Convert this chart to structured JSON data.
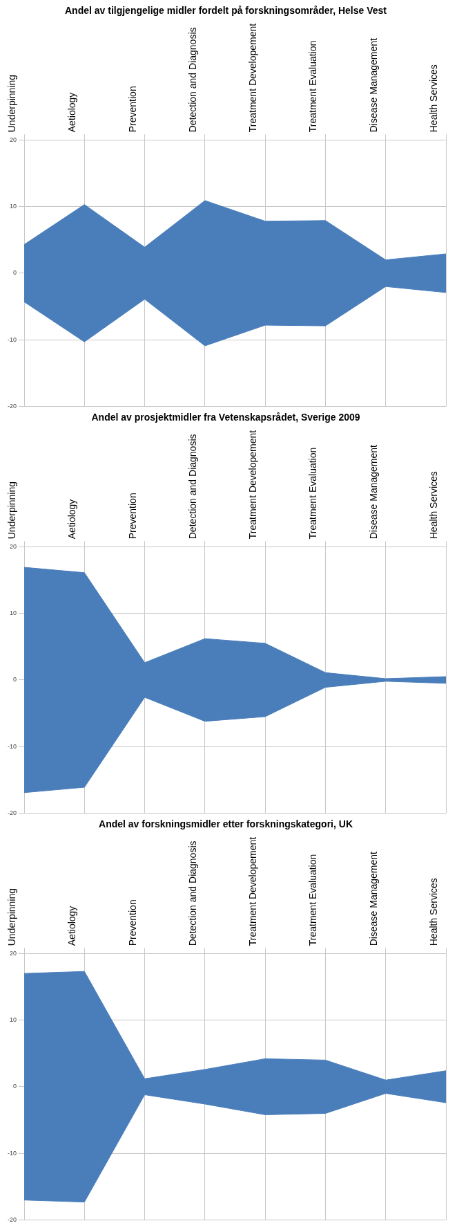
{
  "chart_data": [
    {
      "type": "area",
      "title": "Andel av tilgjengelige midler fordelt på forskningsområder, Helse Vest",
      "categories": [
        "Underpinning",
        "Aetiology",
        "Prevention",
        "Detection and Diagnosis",
        "Treatment Developement",
        "Treatment Evaluation",
        "Disease Management",
        "Health Services"
      ],
      "series": [
        {
          "color": "#4a7ebb",
          "values": [
            4.3,
            10.3,
            3.9,
            10.9,
            7.8,
            7.9,
            2.0,
            2.9
          ]
        },
        {
          "color": "#4a7ebb",
          "values": [
            -4.3,
            -10.3,
            -3.9,
            -10.9,
            -7.8,
            -7.9,
            -2.0,
            -2.9
          ]
        }
      ],
      "ylim": [
        -20,
        20
      ],
      "yticks": [
        -20,
        -10,
        0,
        10,
        20
      ],
      "grid": true,
      "marker": "none",
      "legend": false
    },
    {
      "type": "area",
      "title": "Andel av prosjektmidler fra Vetenskapsrådet, Sverige 2009",
      "categories": [
        "Underpinning",
        "Aetiology",
        "Prevention",
        "Detection and Diagnosis",
        "Treatment Developement",
        "Treatment Evaluation",
        "Disease Management",
        "Health Services"
      ],
      "series": [
        {
          "color": "#4a7ebb",
          "values": [
            16.9,
            16.1,
            2.6,
            6.2,
            5.5,
            1.1,
            0.2,
            0.5
          ]
        },
        {
          "color": "#4a7ebb",
          "values": [
            -16.9,
            -16.1,
            -2.6,
            -6.2,
            -5.5,
            -1.1,
            -0.2,
            -0.5
          ]
        }
      ],
      "ylim": [
        -20,
        20
      ],
      "yticks": [
        -20,
        -10,
        0,
        10,
        20
      ],
      "grid": true,
      "marker": "none",
      "legend": false
    },
    {
      "type": "area",
      "title": "Andel av forskningsmidler etter forskningskategori, UK",
      "categories": [
        "Underpinning",
        "Aetiology",
        "Prevention",
        "Detection and Diagnosis",
        "Treatment Developement",
        "Treatment Evaluation",
        "Disease Management",
        "Health Services"
      ],
      "series": [
        {
          "color": "#4a7ebb",
          "values": [
            17.0,
            17.3,
            1.2,
            2.6,
            4.2,
            4.0,
            1.0,
            2.4
          ]
        },
        {
          "color": "#4a7ebb",
          "values": [
            -17.0,
            -17.3,
            -1.2,
            -2.6,
            -4.2,
            -4.0,
            -1.0,
            -2.4
          ]
        }
      ],
      "ylim": [
        -20,
        20
      ],
      "yticks": [
        -20,
        -10,
        0,
        10,
        20
      ],
      "grid": true,
      "marker": "none",
      "legend": false
    }
  ]
}
